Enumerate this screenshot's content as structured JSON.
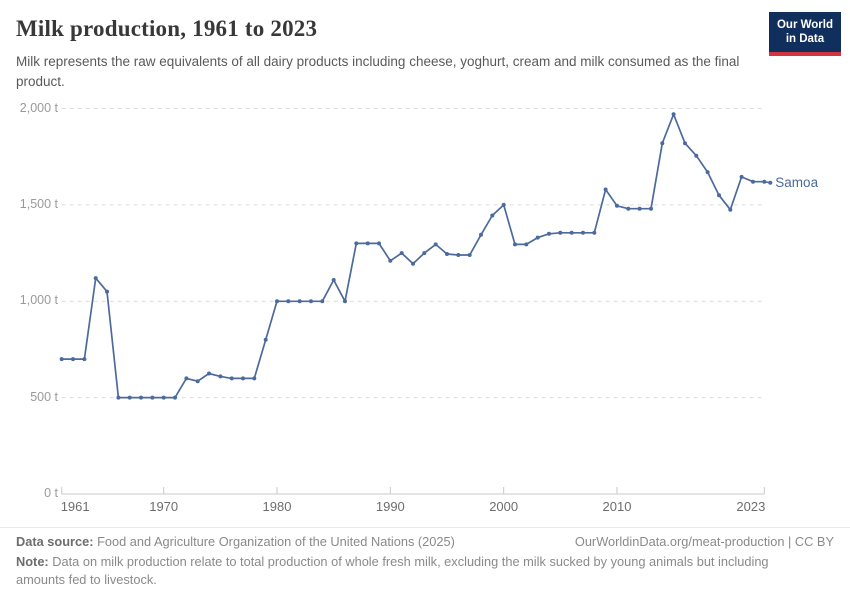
{
  "header": {
    "title": "Milk production, 1961 to 2023",
    "subtitle": "Milk represents the raw equivalents of all dairy products including cheese, yoghurt, cream and milk consumed as the final product.",
    "logo_line1": "Our World",
    "logo_line2": "in Data"
  },
  "chart_data": {
    "type": "line",
    "title": "Milk production, 1961 to 2023",
    "unit": "t",
    "xlim": [
      1961,
      2023
    ],
    "ylim": [
      0,
      2000
    ],
    "grid": "dashed-horizontal",
    "legend_position": "end-of-line-label",
    "x_ticks": [
      1961,
      1970,
      1980,
      1990,
      2000,
      2010,
      2023
    ],
    "y_ticks": [
      {
        "value": 0,
        "label": "0 t"
      },
      {
        "value": 500,
        "label": "500 t"
      },
      {
        "value": 1000,
        "label": "1,000 t"
      },
      {
        "value": 1500,
        "label": "1,500 t"
      },
      {
        "value": 2000,
        "label": "2,000 t"
      }
    ],
    "series": [
      {
        "name": "Samoa",
        "color": "#4c6a9c",
        "x": [
          1961,
          1962,
          1963,
          1964,
          1965,
          1966,
          1967,
          1968,
          1969,
          1970,
          1971,
          1972,
          1973,
          1974,
          1975,
          1976,
          1977,
          1978,
          1979,
          1980,
          1981,
          1982,
          1983,
          1984,
          1985,
          1986,
          1987,
          1988,
          1989,
          1990,
          1991,
          1992,
          1993,
          1994,
          1995,
          1996,
          1997,
          1998,
          1999,
          2000,
          2001,
          2002,
          2003,
          2004,
          2005,
          2006,
          2007,
          2008,
          2009,
          2010,
          2011,
          2012,
          2013,
          2014,
          2015,
          2016,
          2017,
          2018,
          2019,
          2020,
          2021,
          2022,
          2023
        ],
        "values": [
          700,
          700,
          700,
          1120,
          1050,
          500,
          500,
          500,
          500,
          500,
          500,
          600,
          585,
          625,
          610,
          600,
          600,
          600,
          800,
          1000,
          1000,
          1000,
          1000,
          1000,
          1110,
          1000,
          1300,
          1300,
          1300,
          1210,
          1250,
          1195,
          1250,
          1295,
          1245,
          1240,
          1240,
          1345,
          1445,
          1500,
          1295,
          1295,
          1330,
          1350,
          1355,
          1355,
          1355,
          1355,
          1580,
          1495,
          1480,
          1480,
          1480,
          1820,
          1970,
          1820,
          1755,
          1670,
          1550,
          1475,
          1645,
          1620,
          1620
        ]
      }
    ]
  },
  "footer": {
    "datasource_label": "Data source:",
    "datasource_text": " Food and Agriculture Organization of the United Nations (2025)",
    "link_text": "OurWorldinData.org/meat-production | CC BY",
    "note_label": "Note:",
    "note_text": " Data on milk production relate to total production of whole fresh milk, excluding the milk sucked by young animals but including amounts fed to livestock."
  },
  "colors": {
    "line": "#4c6a9c",
    "entity_label": "#4c6a9c",
    "grid": "#dcdcdc",
    "axis": "#c9c9c9",
    "logo_bg": "#112f5c",
    "logo_accent": "#d2353f"
  }
}
